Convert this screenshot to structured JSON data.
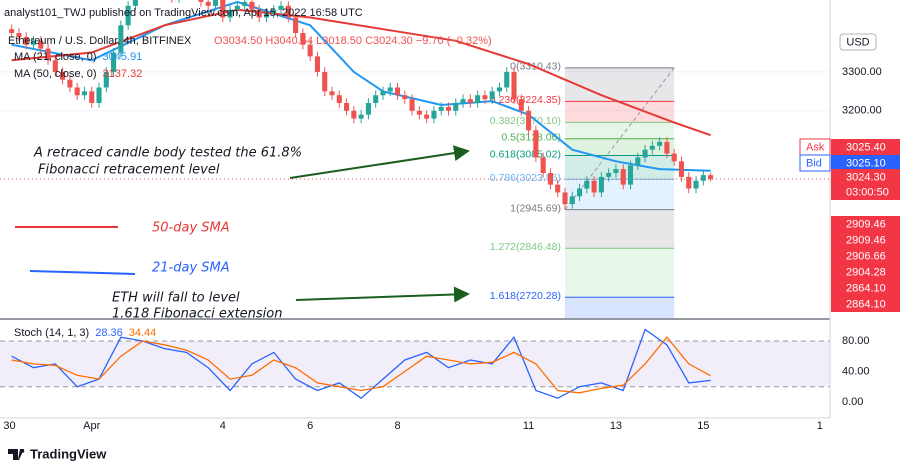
{
  "header": {
    "publisher": "analyst101_TWJ published on TradingView.com, Apr 15, 2022 16:58 UTC",
    "symbol": "Ethereum / U.S. Dollar, 4h, BITFINEX",
    "ohlc": "O3034.50  H3040.54  L3018.50  C3024.30  −9.70 (−0.32%)",
    "currency": "USD"
  },
  "chart_data": [
    {
      "type": "candlestick",
      "xlim": [
        -12.6,
        101.4
      ],
      "ylim": [
        2667,
        3485
      ],
      "yticks": [
        {
          "value": 3300,
          "label": "3300.00"
        },
        {
          "value": 3200,
          "label": "3200.00"
        }
      ],
      "grid": true,
      "up_color": "#26a69a",
      "down_color": "#ef5350",
      "x": [
        -11,
        -10,
        -9,
        -8,
        -7,
        -6,
        -5,
        -4,
        -3,
        -2,
        -1,
        0,
        1,
        2,
        3,
        4,
        5,
        6,
        7,
        8,
        9,
        10,
        11,
        12,
        13,
        14,
        15,
        16,
        17,
        18,
        19,
        20,
        21,
        22,
        23,
        24,
        25,
        26,
        27,
        28,
        29,
        30,
        31,
        32,
        33,
        34,
        35,
        36,
        37,
        38,
        39,
        40,
        41,
        42,
        43,
        44,
        45,
        46,
        47,
        48,
        49,
        50,
        51,
        52,
        53,
        54,
        55,
        56,
        57,
        58,
        59,
        60,
        61,
        62,
        63,
        64,
        65,
        66,
        67,
        68,
        69,
        70,
        71,
        72,
        73,
        74,
        75,
        76,
        77,
        78,
        79,
        80,
        81,
        82,
        83,
        84,
        85
      ],
      "candles": [
        [
          3410,
          3422,
          3388,
          3400
        ],
        [
          3400,
          3412,
          3378,
          3390
        ],
        [
          3390,
          3402,
          3358,
          3370
        ],
        [
          3370,
          3392,
          3358,
          3380
        ],
        [
          3380,
          3392,
          3348,
          3360
        ],
        [
          3360,
          3372,
          3318,
          3330
        ],
        [
          3330,
          3342,
          3288,
          3300
        ],
        [
          3300,
          3312,
          3268,
          3280
        ],
        [
          3280,
          3292,
          3248,
          3260
        ],
        [
          3260,
          3272,
          3228,
          3240
        ],
        [
          3240,
          3262,
          3228,
          3250
        ],
        [
          3250,
          3262,
          3208,
          3220
        ],
        [
          3220,
          3272,
          3208,
          3260
        ],
        [
          3260,
          3312,
          3248,
          3300
        ],
        [
          3300,
          3362,
          3288,
          3350
        ],
        [
          3350,
          3432,
          3338,
          3420
        ],
        [
          3420,
          3482,
          3408,
          3470
        ],
        [
          3470,
          3512,
          3458,
          3500
        ],
        [
          3500,
          3532,
          3488,
          3520
        ],
        [
          3520,
          3532,
          3498,
          3510
        ],
        [
          3510,
          3542,
          3498,
          3530
        ],
        [
          3530,
          3542,
          3488,
          3500
        ],
        [
          3500,
          3512,
          3478,
          3490
        ],
        [
          3490,
          3522,
          3478,
          3510
        ],
        [
          3510,
          3532,
          3498,
          3520
        ],
        [
          3520,
          3532,
          3488,
          3500
        ],
        [
          3500,
          3512,
          3468,
          3480
        ],
        [
          3480,
          3492,
          3458,
          3470
        ],
        [
          3470,
          3502,
          3458,
          3490
        ],
        [
          3490,
          3502,
          3428,
          3440
        ],
        [
          3440,
          3472,
          3428,
          3460
        ],
        [
          3460,
          3482,
          3448,
          3470
        ],
        [
          3470,
          3492,
          3458,
          3480
        ],
        [
          3480,
          3492,
          3448,
          3460
        ],
        [
          3460,
          3472,
          3428,
          3440
        ],
        [
          3440,
          3462,
          3428,
          3450
        ],
        [
          3450,
          3472,
          3438,
          3460
        ],
        [
          3460,
          3482,
          3448,
          3470
        ],
        [
          3470,
          3482,
          3428,
          3440
        ],
        [
          3440,
          3452,
          3388,
          3400
        ],
        [
          3400,
          3412,
          3358,
          3370
        ],
        [
          3370,
          3382,
          3328,
          3340
        ],
        [
          3340,
          3352,
          3288,
          3300
        ],
        [
          3300,
          3312,
          3238,
          3250
        ],
        [
          3250,
          3262,
          3228,
          3240
        ],
        [
          3240,
          3252,
          3208,
          3220
        ],
        [
          3220,
          3232,
          3188,
          3200
        ],
        [
          3200,
          3212,
          3168,
          3180
        ],
        [
          3180,
          3202,
          3168,
          3190
        ],
        [
          3190,
          3232,
          3178,
          3220
        ],
        [
          3220,
          3252,
          3208,
          3240
        ],
        [
          3240,
          3262,
          3228,
          3250
        ],
        [
          3250,
          3272,
          3238,
          3260
        ],
        [
          3260,
          3272,
          3228,
          3240
        ],
        [
          3240,
          3252,
          3218,
          3230
        ],
        [
          3230,
          3242,
          3188,
          3200
        ],
        [
          3200,
          3212,
          3178,
          3190
        ],
        [
          3190,
          3202,
          3168,
          3180
        ],
        [
          3180,
          3212,
          3168,
          3200
        ],
        [
          3200,
          3222,
          3188,
          3210
        ],
        [
          3210,
          3222,
          3188,
          3200
        ],
        [
          3200,
          3232,
          3188,
          3220
        ],
        [
          3220,
          3242,
          3208,
          3230
        ],
        [
          3230,
          3242,
          3208,
          3220
        ],
        [
          3220,
          3252,
          3208,
          3240
        ],
        [
          3240,
          3252,
          3218,
          3230
        ],
        [
          3230,
          3262,
          3218,
          3250
        ],
        [
          3250,
          3272,
          3238,
          3260
        ],
        [
          3260,
          3312,
          3248,
          3300
        ],
        [
          3300,
          3312,
          3218,
          3230
        ],
        [
          3230,
          3242,
          3188,
          3200
        ],
        [
          3200,
          3212,
          3138,
          3150
        ],
        [
          3150,
          3162,
          3068,
          3080
        ],
        [
          3080,
          3092,
          3028,
          3040
        ],
        [
          3040,
          3052,
          2998,
          3010
        ],
        [
          3010,
          3022,
          2978,
          2990
        ],
        [
          2990,
          3002,
          2945.69,
          2960
        ],
        [
          2960,
          2992,
          2948,
          2980
        ],
        [
          2980,
          3012,
          2968,
          3000
        ],
        [
          3000,
          3032,
          2988,
          3020
        ],
        [
          3020,
          3032,
          2978,
          2990
        ],
        [
          2990,
          3042,
          2978,
          3030
        ],
        [
          3030,
          3052,
          3018,
          3040
        ],
        [
          3040,
          3062,
          3028,
          3050
        ],
        [
          3050,
          3062,
          2998,
          3010
        ],
        [
          3010,
          3072,
          2998,
          3060
        ],
        [
          3060,
          3092,
          3048,
          3080
        ],
        [
          3080,
          3112,
          3068,
          3100
        ],
        [
          3100,
          3122,
          3088,
          3110
        ],
        [
          3110,
          3132,
          3098,
          3120
        ],
        [
          3120,
          3132,
          3078,
          3090
        ],
        [
          3090,
          3102,
          3058,
          3070
        ],
        [
          3070,
          3082,
          3018,
          3030
        ],
        [
          3030,
          3042,
          2988,
          3000
        ],
        [
          3000,
          3032,
          2988,
          3020
        ],
        [
          3020,
          3046,
          3008,
          3034.5
        ],
        [
          3034.5,
          3040.54,
          3018.5,
          3024.3
        ]
      ],
      "series": [
        {
          "name": "MA (21, close, 0)",
          "color": "#2196f3",
          "x": [
            -11,
            0,
            10,
            20,
            30,
            36,
            40,
            48,
            55,
            60,
            66,
            72,
            78,
            85
          ],
          "values": [
            3370,
            3330,
            3420,
            3480,
            3420,
            3300,
            3250,
            3215,
            3225,
            3190,
            3100,
            3070,
            3050,
            3045.91
          ]
        },
        {
          "name": "MA (50, close, 0)",
          "color": "#e53935",
          "x": [
            -11,
            0,
            10,
            20,
            30,
            40,
            50,
            60,
            70,
            80,
            85
          ],
          "values": [
            3330,
            3350,
            3420,
            3460,
            3440,
            3410,
            3380,
            3320,
            3240,
            3170,
            3137.32
          ]
        }
      ],
      "fib": {
        "x": [
          65,
          80
        ],
        "levels": [
          {
            "label": "0(3310.43)",
            "value": 3310.43,
            "color": "#787b86"
          },
          {
            "label": "0.236(3224.35)",
            "value": 3224.35,
            "color": "#f23645"
          },
          {
            "label": "0.382(3170.10)",
            "value": 3170.1,
            "color": "#81c784"
          },
          {
            "label": "0.5(3128.06)",
            "value": 3128.06,
            "color": "#4caf50"
          },
          {
            "label": "0.618(3085.02)",
            "value": 3085.02,
            "color": "#089981"
          },
          {
            "label": "0.786(3023.86)",
            "value": 3023.86,
            "color": "#64b5f6"
          },
          {
            "label": "1(2945.69)",
            "value": 2945.69,
            "color": "#787b86"
          },
          {
            "label": "1.272(2846.48)",
            "value": 2846.48,
            "color": "#81c784"
          },
          {
            "label": "1.618(2720.28)",
            "value": 2720.28,
            "color": "#2962ff"
          }
        ]
      },
      "annotations": [
        {
          "text": "A retraced candle body tested the 61.8%",
          "color": "#131722"
        },
        {
          "text": "Fibonacci retracement level",
          "color": "#131722"
        },
        {
          "text": "50-day SMA",
          "color": "#e53935"
        },
        {
          "text": "21-day SMA",
          "color": "#2962ff"
        },
        {
          "text": "ETH will fall to level",
          "color": "#131722"
        },
        {
          "text": "1.618 Fibonacci extension",
          "color": "#131722"
        }
      ],
      "axis_badges": [
        {
          "name": "Ask",
          "text": "3025.40",
          "color": "#f23645"
        },
        {
          "name": "Bid",
          "text": "3025.10",
          "color": "#2962ff"
        },
        {
          "text": "3024.30",
          "color": "#f23645"
        },
        {
          "text": "03:00:50",
          "color": "#f23645"
        },
        {
          "text": "2909.46",
          "color": "#f23645"
        },
        {
          "text": "2909.46",
          "color": "#f23645"
        },
        {
          "text": "2906.66",
          "color": "#f23645"
        },
        {
          "text": "2904.28",
          "color": "#f23645"
        },
        {
          "text": "2864.10",
          "color": "#f23645"
        },
        {
          "text": "2864.10",
          "color": "#f23645"
        }
      ]
    },
    {
      "type": "line",
      "title": "Stoch (14, 1, 3)",
      "xlim": [
        -12.6,
        101.4
      ],
      "ylim": [
        -21,
        107.5
      ],
      "yticks": [
        {
          "value": 80,
          "label": "80.00"
        },
        {
          "value": 40,
          "label": "40.00"
        },
        {
          "value": 0,
          "label": "0.00"
        }
      ],
      "xticks": [
        {
          "value": -11.3,
          "label": "30"
        },
        {
          "value": 0,
          "label": "Apr"
        },
        {
          "value": 18,
          "label": "4"
        },
        {
          "value": 30,
          "label": "6"
        },
        {
          "value": 42,
          "label": "8"
        },
        {
          "value": 60,
          "label": "11"
        },
        {
          "value": 72,
          "label": "13"
        },
        {
          "value": 84,
          "label": "15"
        },
        {
          "value": 100,
          "label": "1"
        }
      ],
      "band": [
        20,
        80
      ],
      "band_color": "#7e57c2",
      "x": [
        -11,
        -8,
        -5,
        -2,
        1,
        4,
        7,
        10,
        13,
        16,
        19,
        22,
        25,
        28,
        31,
        34,
        37,
        40,
        43,
        46,
        49,
        52,
        55,
        58,
        61,
        64,
        67,
        70,
        73,
        76,
        79,
        82,
        85
      ],
      "series": [
        {
          "color": "#2962ff",
          "values": [
            60,
            45,
            50,
            20,
            30,
            85,
            80,
            70,
            65,
            45,
            15,
            50,
            65,
            30,
            15,
            25,
            5,
            30,
            55,
            65,
            45,
            55,
            50,
            85,
            15,
            5,
            20,
            25,
            15,
            95,
            75,
            25,
            28.36
          ]
        },
        {
          "color": "#ff6d00",
          "values": [
            55,
            50,
            48,
            35,
            30,
            60,
            80,
            75,
            68,
            55,
            30,
            35,
            55,
            45,
            25,
            20,
            15,
            20,
            40,
            60,
            55,
            50,
            52,
            65,
            50,
            15,
            12,
            18,
            22,
            50,
            85,
            50,
            34.44
          ]
        }
      ]
    }
  ],
  "footer": {
    "brand": "TradingView"
  }
}
